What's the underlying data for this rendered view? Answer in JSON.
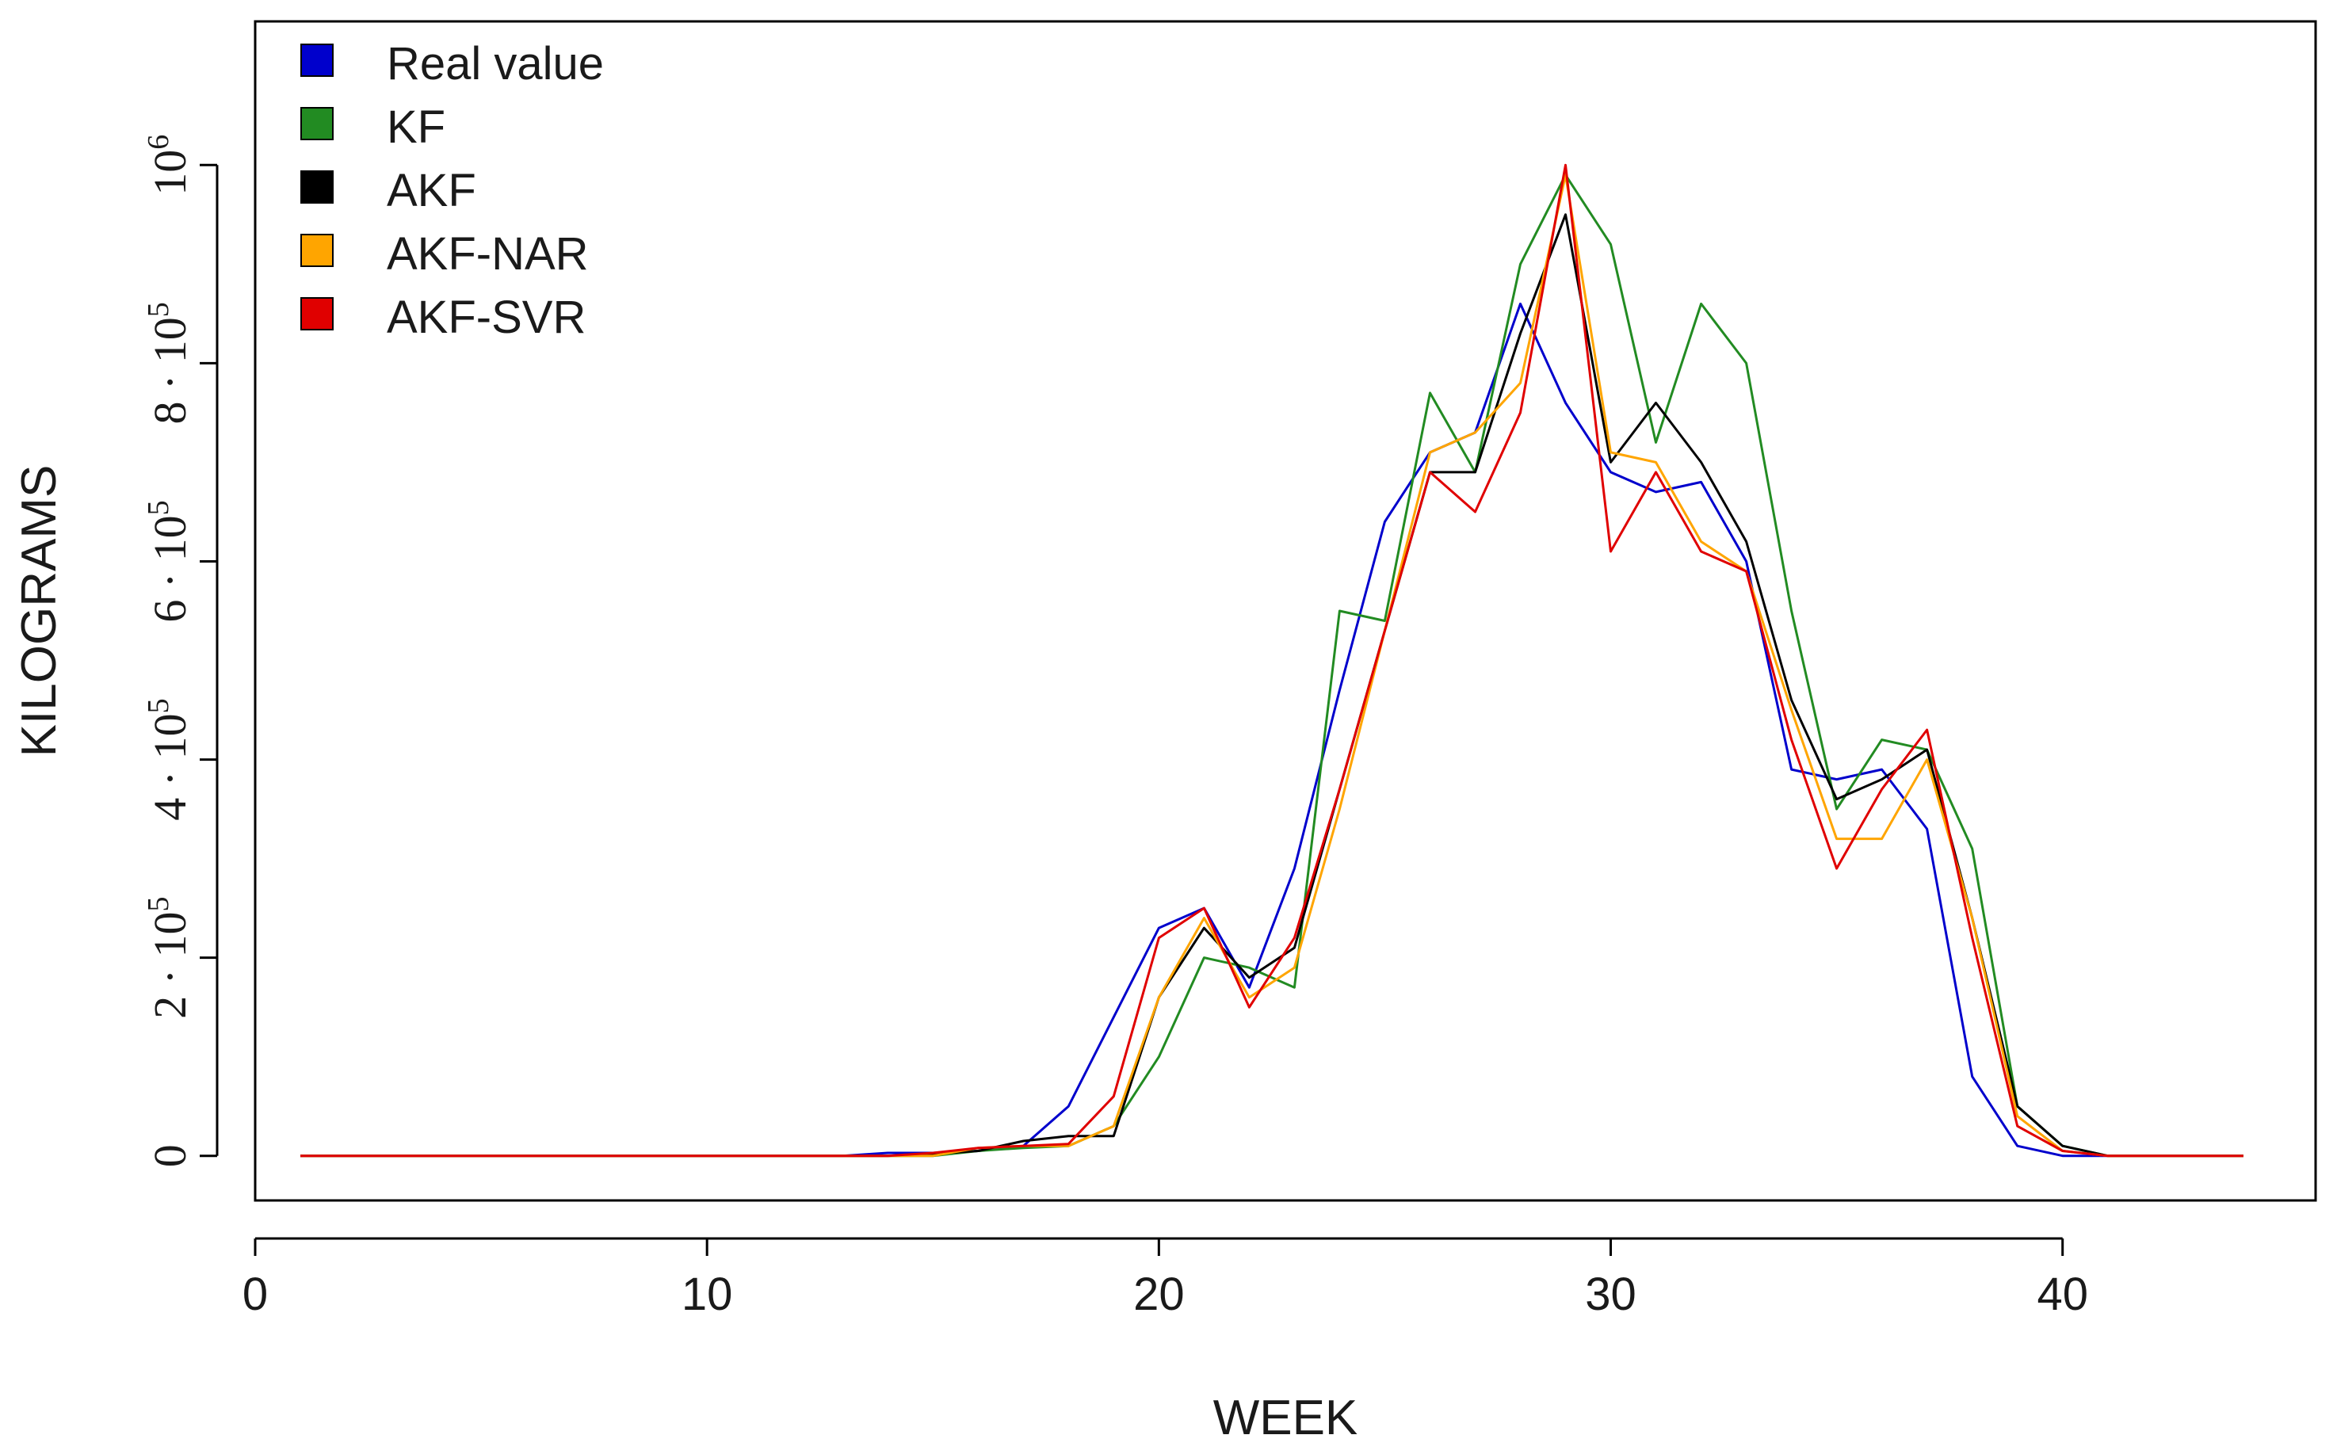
{
  "chart_data": {
    "type": "line",
    "title": "",
    "xlabel": "WEEK",
    "ylabel": "KILOGRAMS",
    "xlim": [
      0,
      45.6
    ],
    "ylim": [
      -45000,
      1145000
    ],
    "x_ticks": [
      0,
      10,
      20,
      30,
      40
    ],
    "x_tick_labels": [
      "0",
      "10",
      "20",
      "30",
      "40"
    ],
    "y_ticks": [
      0,
      200000,
      400000,
      600000,
      800000,
      1000000
    ],
    "y_tick_labels": [
      {
        "base": "0",
        "exp": ""
      },
      {
        "base": "2 · 10",
        "exp": "5"
      },
      {
        "base": "4 · 10",
        "exp": "5"
      },
      {
        "base": "6 · 10",
        "exp": "5"
      },
      {
        "base": "8 · 10",
        "exp": "5"
      },
      {
        "base": "10",
        "exp": "6"
      }
    ],
    "grid": false,
    "legend_position": "top-left",
    "x": [
      1,
      2,
      3,
      4,
      5,
      6,
      7,
      8,
      9,
      10,
      11,
      12,
      13,
      14,
      15,
      16,
      17,
      18,
      19,
      20,
      21,
      22,
      23,
      24,
      25,
      26,
      27,
      28,
      29,
      30,
      31,
      32,
      33,
      34,
      35,
      36,
      37,
      38,
      39,
      40,
      41,
      42,
      43,
      44
    ],
    "series": [
      {
        "name": "Real value",
        "color": "#0000cc",
        "values": [
          0,
          0,
          0,
          0,
          0,
          0,
          0,
          0,
          0,
          0,
          0,
          0,
          0,
          3000,
          3000,
          5000,
          10000,
          50000,
          140000,
          230000,
          250000,
          170000,
          290000,
          470000,
          640000,
          710000,
          730000,
          860000,
          760000,
          690000,
          670000,
          680000,
          600000,
          390000,
          380000,
          390000,
          330000,
          80000,
          10000,
          0,
          0,
          0,
          0,
          0
        ]
      },
      {
        "name": "KF",
        "color": "#228b22",
        "values": [
          0,
          0,
          0,
          0,
          0,
          0,
          0,
          0,
          0,
          0,
          0,
          0,
          0,
          0,
          0,
          5000,
          8000,
          10000,
          30000,
          100000,
          200000,
          190000,
          170000,
          550000,
          540000,
          770000,
          690000,
          900000,
          990000,
          920000,
          720000,
          860000,
          800000,
          550000,
          350000,
          420000,
          410000,
          310000,
          50000,
          10000,
          0,
          0,
          0,
          0
        ]
      },
      {
        "name": "AKF",
        "color": "#000000",
        "values": [
          0,
          0,
          0,
          0,
          0,
          0,
          0,
          0,
          0,
          0,
          0,
          0,
          0,
          0,
          2000,
          5000,
          15000,
          20000,
          20000,
          160000,
          230000,
          180000,
          210000,
          370000,
          530000,
          690000,
          690000,
          830000,
          950000,
          700000,
          760000,
          700000,
          620000,
          460000,
          360000,
          380000,
          410000,
          240000,
          50000,
          10000,
          0,
          0,
          0,
          0
        ]
      },
      {
        "name": "AKF-NAR",
        "color": "#ffa500",
        "values": [
          0,
          0,
          0,
          0,
          0,
          0,
          0,
          0,
          0,
          0,
          0,
          0,
          0,
          0,
          0,
          8000,
          10000,
          10000,
          30000,
          160000,
          240000,
          160000,
          190000,
          350000,
          530000,
          710000,
          730000,
          780000,
          990000,
          710000,
          700000,
          620000,
          590000,
          450000,
          320000,
          320000,
          400000,
          240000,
          40000,
          5000,
          0,
          0,
          0,
          0
        ]
      },
      {
        "name": "AKF-SVR",
        "color": "#e00000",
        "values": [
          0,
          0,
          0,
          0,
          0,
          0,
          0,
          0,
          0,
          0,
          0,
          0,
          0,
          0,
          3000,
          8000,
          10000,
          12000,
          60000,
          220000,
          250000,
          150000,
          220000,
          370000,
          530000,
          690000,
          650000,
          750000,
          1000000,
          610000,
          690000,
          610000,
          590000,
          420000,
          290000,
          370000,
          430000,
          220000,
          30000,
          5000,
          0,
          0,
          0,
          0
        ]
      }
    ]
  }
}
